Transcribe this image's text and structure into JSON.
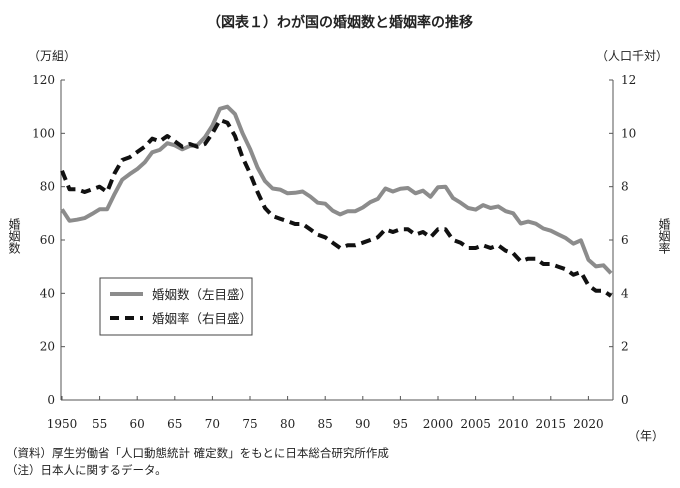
{
  "chart_data": {
    "type": "line",
    "title": "（図表１）わが国の婚姻数と婚姻率の推移",
    "y_left_unit": "（万組）",
    "y_right_unit": "（人口千対）",
    "x_unit": "（年）",
    "y_left_label": "婚姻数",
    "y_right_label": "婚姻率",
    "y_left_lim": [
      0,
      120
    ],
    "y_right_lim": [
      0,
      12
    ],
    "y_left_ticks": [
      "0",
      "20",
      "40",
      "60",
      "80",
      "100",
      "120"
    ],
    "y_right_ticks": [
      "0",
      "2",
      "4",
      "6",
      "8",
      "10",
      "12"
    ],
    "x_ticks": [
      {
        "year": 1950,
        "label": "1950"
      },
      {
        "year": 1955,
        "label": "55"
      },
      {
        "year": 1960,
        "label": "60"
      },
      {
        "year": 1965,
        "label": "65"
      },
      {
        "year": 1970,
        "label": "70"
      },
      {
        "year": 1975,
        "label": "75"
      },
      {
        "year": 1980,
        "label": "80"
      },
      {
        "year": 1985,
        "label": "85"
      },
      {
        "year": 1990,
        "label": "90"
      },
      {
        "year": 1995,
        "label": "95"
      },
      {
        "year": 2000,
        "label": "2000"
      },
      {
        "year": 2005,
        "label": "2005"
      },
      {
        "year": 2010,
        "label": "2010"
      },
      {
        "year": 2015,
        "label": "2015"
      },
      {
        "year": 2020,
        "label": "2020"
      }
    ],
    "grid": false,
    "legend_placement": "center-left",
    "x": [
      1950,
      1951,
      1952,
      1953,
      1954,
      1955,
      1956,
      1957,
      1958,
      1959,
      1960,
      1961,
      1962,
      1963,
      1964,
      1965,
      1966,
      1967,
      1968,
      1969,
      1970,
      1971,
      1972,
      1973,
      1974,
      1975,
      1976,
      1977,
      1978,
      1979,
      1980,
      1981,
      1982,
      1983,
      1984,
      1985,
      1986,
      1987,
      1988,
      1989,
      1990,
      1991,
      1992,
      1993,
      1994,
      1995,
      1996,
      1997,
      1998,
      1999,
      2000,
      2001,
      2002,
      2003,
      2004,
      2005,
      2006,
      2007,
      2008,
      2009,
      2010,
      2011,
      2012,
      2013,
      2014,
      2015,
      2016,
      2017,
      2018,
      2019,
      2020,
      2021,
      2022,
      2023
    ],
    "series": [
      {
        "name": "婚姻数（左目盛）",
        "axis": "left",
        "color": "#8c8c8c",
        "style": "solid",
        "values": [
          71.5,
          67.2,
          67.6,
          68.2,
          69.8,
          71.5,
          71.5,
          77.3,
          82.6,
          84.7,
          86.6,
          89.1,
          92.9,
          93.8,
          96.3,
          95.5,
          94.0,
          95.3,
          95.6,
          98.5,
          102.9,
          109.2,
          110.0,
          107.2,
          100.1,
          94.2,
          87.2,
          82.1,
          79.3,
          78.9,
          77.5,
          77.7,
          78.2,
          76.3,
          74.0,
          73.6,
          71.0,
          69.6,
          70.8,
          70.8,
          72.2,
          74.2,
          75.4,
          79.3,
          78.2,
          79.2,
          79.5,
          77.5,
          78.5,
          76.2,
          79.8,
          80.0,
          75.7,
          74.0,
          72.0,
          71.4,
          73.1,
          72.0,
          72.6,
          70.8,
          70.0,
          66.2,
          66.9,
          66.1,
          64.3,
          63.5,
          62.1,
          60.7,
          58.6,
          59.9,
          52.6,
          50.1,
          50.5,
          47.5
        ]
      },
      {
        "name": "婚姻率（右目盛）",
        "axis": "right",
        "color": "#111111",
        "style": "dashed",
        "values": [
          8.6,
          7.9,
          7.9,
          7.8,
          7.9,
          8.0,
          7.8,
          8.5,
          9.0,
          9.1,
          9.3,
          9.5,
          9.8,
          9.7,
          9.9,
          9.7,
          9.5,
          9.6,
          9.5,
          9.6,
          10.0,
          10.5,
          10.4,
          9.9,
          9.1,
          8.5,
          7.8,
          7.2,
          6.9,
          6.8,
          6.7,
          6.6,
          6.6,
          6.4,
          6.2,
          6.1,
          5.9,
          5.7,
          5.8,
          5.8,
          5.9,
          6.0,
          6.1,
          6.4,
          6.3,
          6.4,
          6.4,
          6.2,
          6.3,
          6.1,
          6.4,
          6.4,
          6.0,
          5.9,
          5.7,
          5.7,
          5.8,
          5.7,
          5.8,
          5.6,
          5.5,
          5.2,
          5.3,
          5.3,
          5.1,
          5.1,
          5.0,
          4.9,
          4.7,
          4.8,
          4.3,
          4.1,
          4.1,
          3.9
        ]
      }
    ]
  },
  "notes": {
    "source": "（資料）厚生労働省「人口動態統計 確定数」をもとに日本総合研究所作成",
    "note": "（注）日本人に関するデータ。"
  }
}
